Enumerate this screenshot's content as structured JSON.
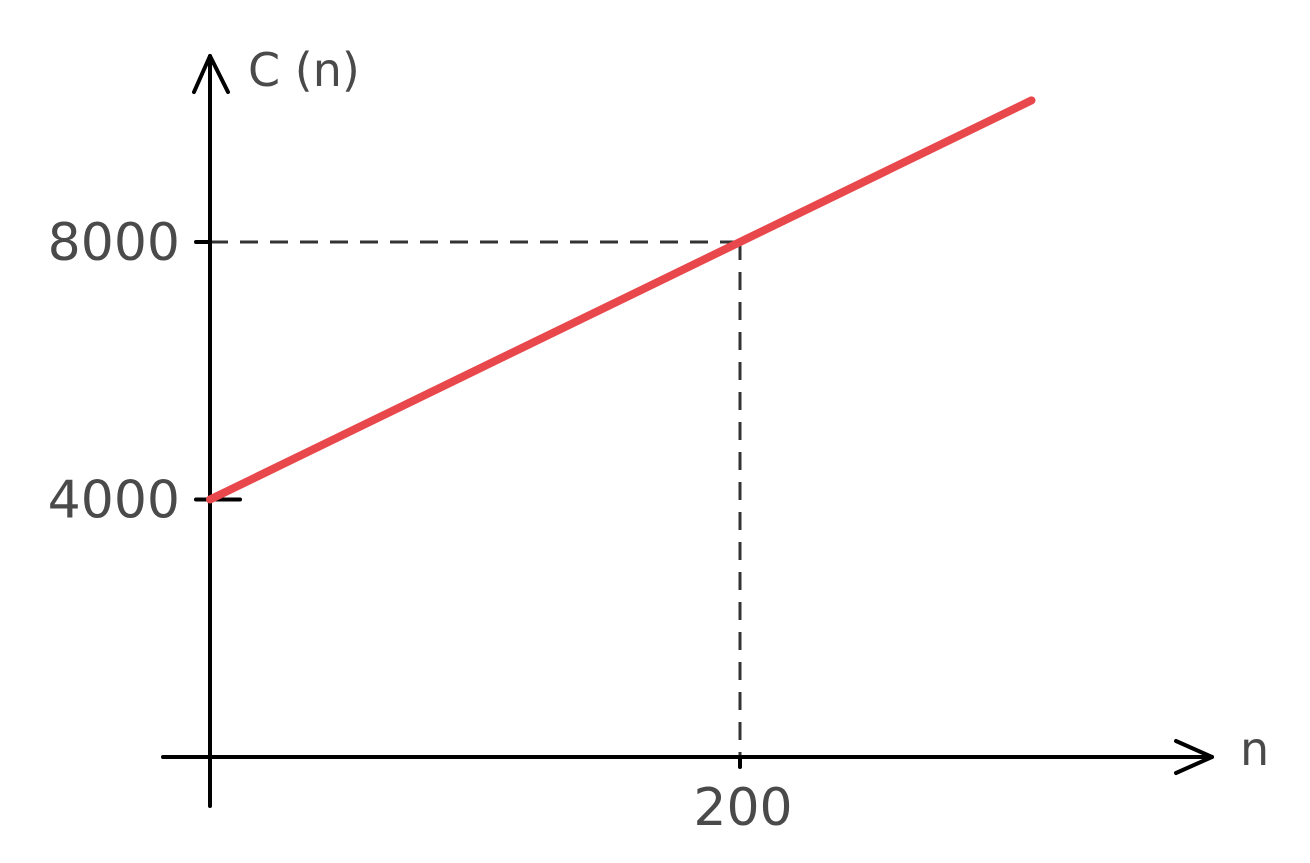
{
  "chart_data": {
    "type": "line",
    "xlabel": "n",
    "ylabel": "C (n)",
    "xlim": [
      0,
      310
    ],
    "ylim": [
      0,
      10100
    ],
    "x_ticks": [
      {
        "value": 200,
        "label": "200"
      }
    ],
    "y_ticks": [
      {
        "value": 4000,
        "label": "4000"
      },
      {
        "value": 8000,
        "label": "8000"
      }
    ],
    "series": [
      {
        "color": "#e8474b",
        "x": [
          0,
          200,
          310
        ],
        "y": [
          4000,
          8000,
          10200
        ]
      }
    ],
    "reference_point": {
      "x": 200,
      "y": 8000
    },
    "grid": false,
    "legend": "none"
  }
}
